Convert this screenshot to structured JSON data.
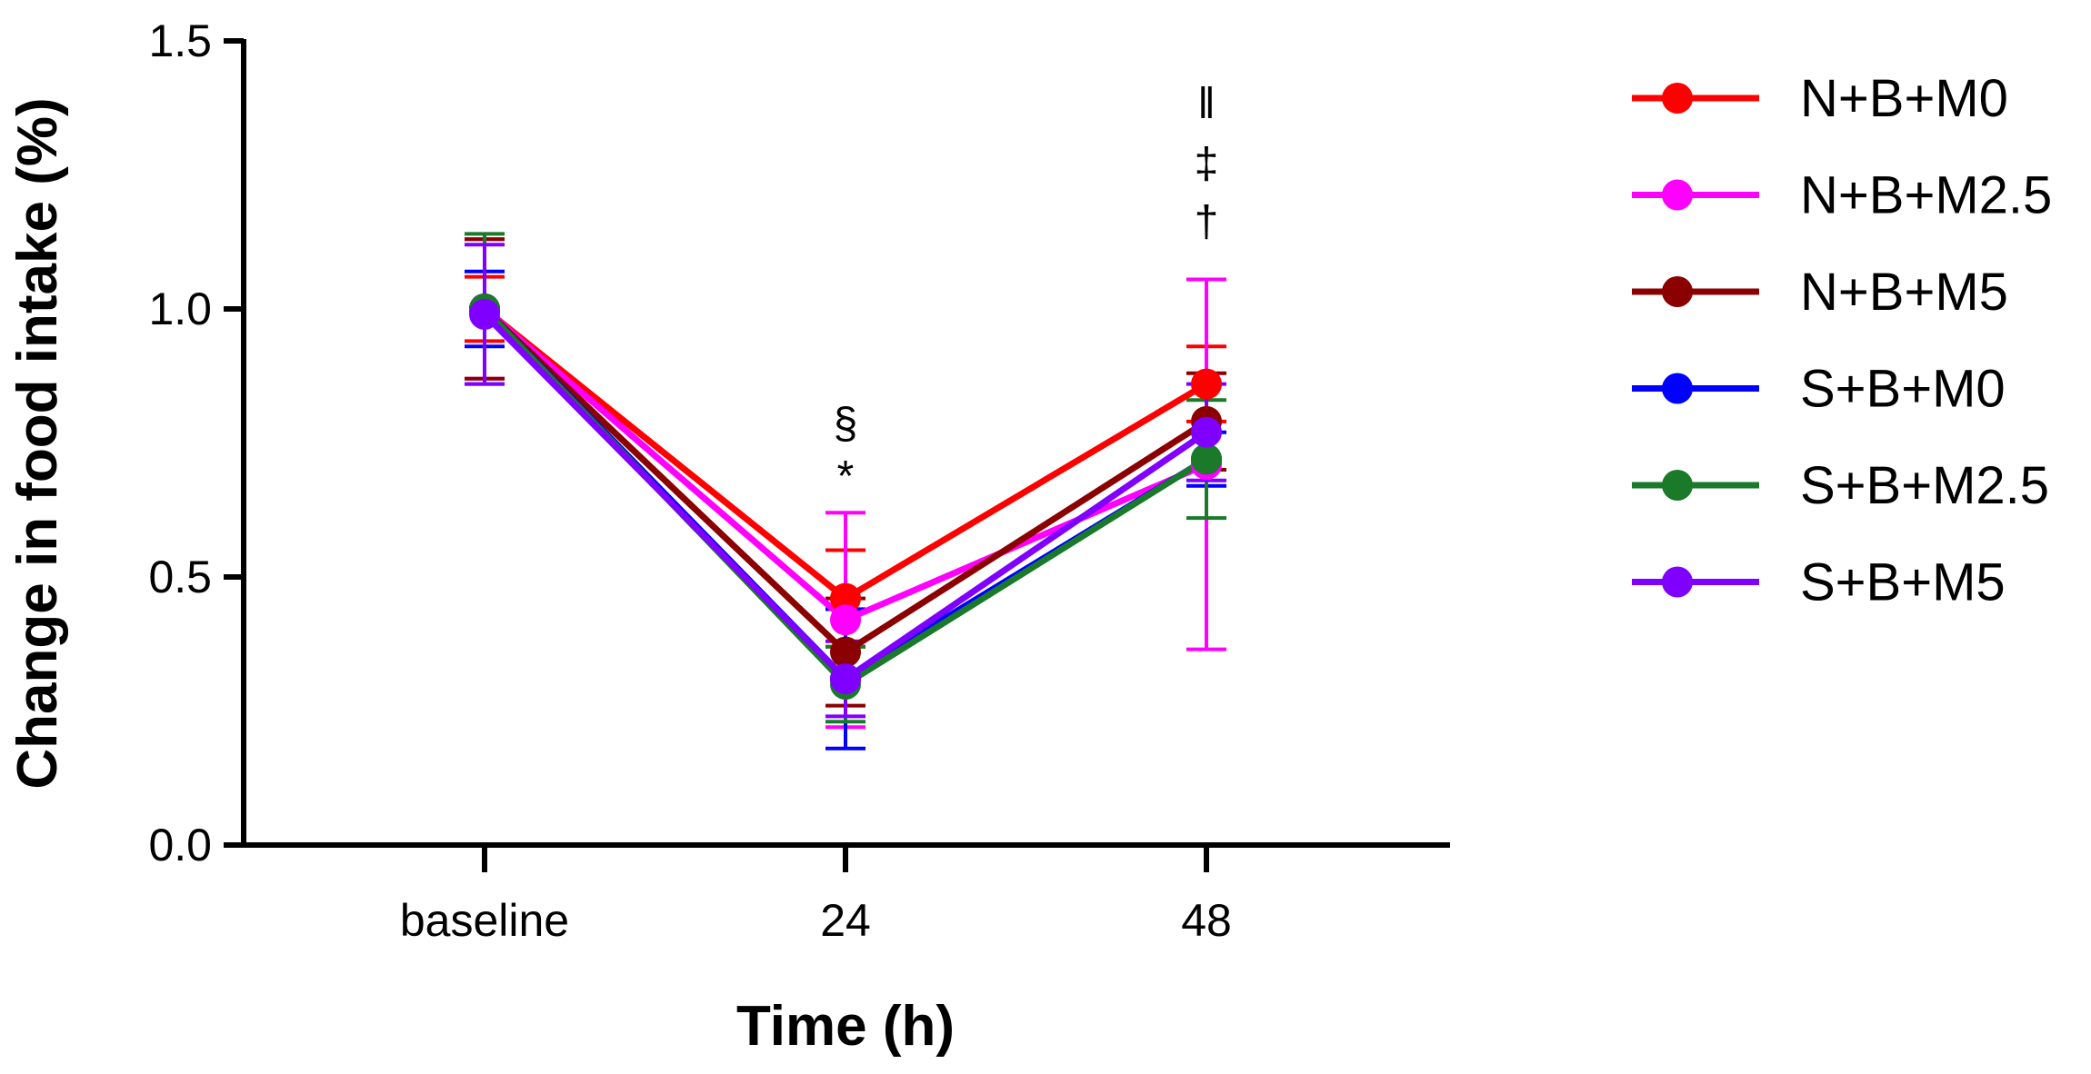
{
  "chart_data": {
    "type": "line",
    "title": "",
    "xlabel": "Time (h)",
    "ylabel": "Change in food intake (%)",
    "categories": [
      "baseline",
      "24",
      "48"
    ],
    "ylim": [
      0,
      1.5
    ],
    "yticks": [
      "0.0",
      "0.5",
      "1.0",
      "1.5"
    ],
    "ytick_values": [
      0,
      0.5,
      1.0,
      1.5
    ],
    "grid": false,
    "legend_position": "right",
    "series": [
      {
        "name": "N+B+M0",
        "color": "#ff0000",
        "values": [
          1.0,
          0.46,
          0.86
        ],
        "errors": [
          0.06,
          0.09,
          0.07
        ]
      },
      {
        "name": "N+B+M2.5",
        "color": "#ff00ff",
        "values": [
          1.0,
          0.42,
          0.71
        ],
        "errors": [
          0.13,
          0.2,
          0.345
        ]
      },
      {
        "name": "N+B+M5",
        "color": "#8b0000",
        "values": [
          1.0,
          0.36,
          0.79
        ],
        "errors": [
          0.13,
          0.1,
          0.09
        ]
      },
      {
        "name": "S+B+M0",
        "color": "#0000ff",
        "values": [
          1.0,
          0.31,
          0.72
        ],
        "errors": [
          0.07,
          0.13,
          0.05
        ]
      },
      {
        "name": "S+B+M2.5",
        "color": "#1a7a2a",
        "values": [
          1.0,
          0.3,
          0.72
        ],
        "errors": [
          0.14,
          0.07,
          0.11
        ]
      },
      {
        "name": "S+B+M5",
        "color": "#8000ff",
        "values": [
          0.99,
          0.31,
          0.77
        ],
        "errors": [
          0.13,
          0.07,
          0.09
        ]
      }
    ],
    "annotations": [
      {
        "category": "24",
        "lines": [
          "§",
          "*"
        ]
      },
      {
        "category": "48",
        "lines": [
          "‖",
          "‡",
          "†"
        ]
      }
    ]
  }
}
